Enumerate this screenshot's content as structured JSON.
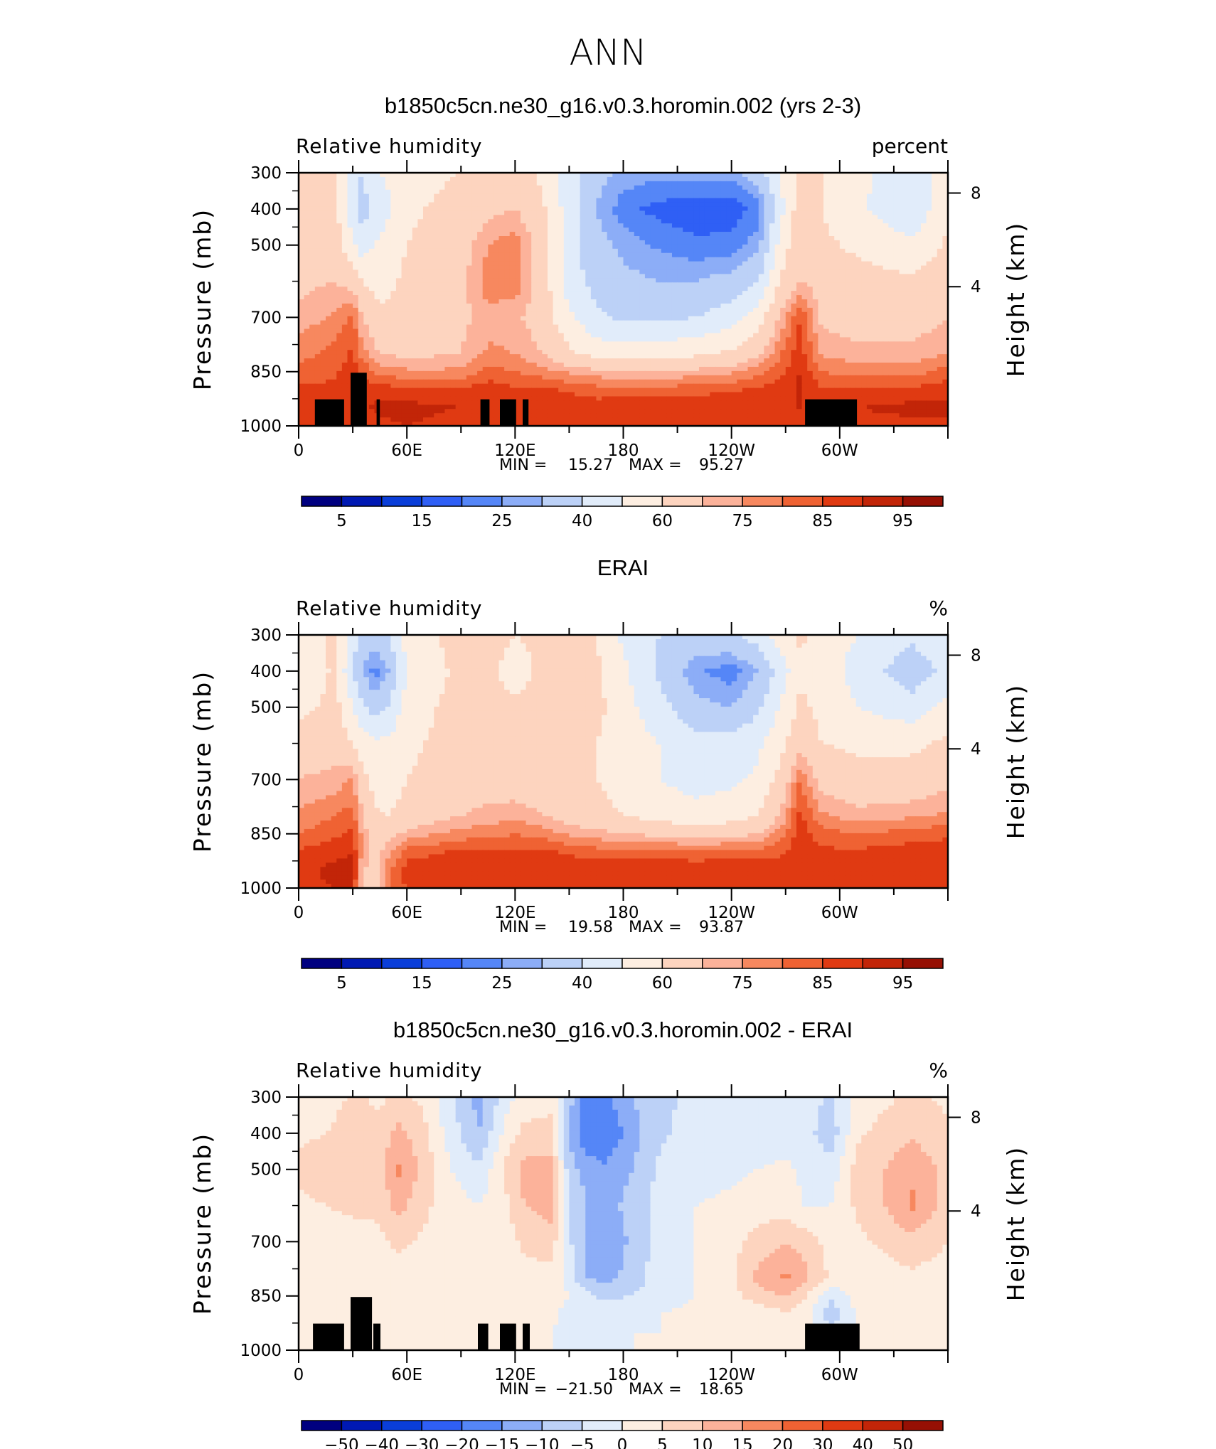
{
  "figure": {
    "title": "ANN"
  },
  "colors": {
    "levels_rh": [
      "#000080",
      "#0019b3",
      "#0a3ed9",
      "#2f5ff5",
      "#5586f7",
      "#8cadf7",
      "#bcd1f7",
      "#e1ecfa",
      "#fdeee1",
      "#fdd4bf",
      "#fcb29a",
      "#f7885f",
      "#ef6233",
      "#e03a12",
      "#c22508",
      "#961004"
    ],
    "levels_diff": [
      "#000080",
      "#0019b3",
      "#0a3ed9",
      "#2f5ff5",
      "#5586f7",
      "#8cadf7",
      "#bcd1f7",
      "#e1ecfa",
      "#fdeee1",
      "#fdd4bf",
      "#fcb29a",
      "#f7885f",
      "#ef6233",
      "#e03a12",
      "#c22508",
      "#961004"
    ],
    "topography": "#000000"
  },
  "chart_data": [
    {
      "type": "heatmap",
      "title": "b1850c5cn.ne30_g16.v0.3.horomin.002 (yrs 2-3)",
      "left_label": "Relative humidity",
      "units": "percent",
      "ylabel": "Pressure (mb)",
      "ylabel_right": "Height (km)",
      "x_ticks": [
        "0",
        "60E",
        "120E",
        "180",
        "120W",
        "60W"
      ],
      "y_ticks": [
        "300",
        "400",
        "500",
        "700",
        "850",
        "1000"
      ],
      "y_ticks_right": [
        "8",
        "4"
      ],
      "ylim": [
        1000,
        300
      ],
      "xlim": [
        0,
        360
      ],
      "stats": {
        "min_label": "MIN =",
        "min": "15.27",
        "max_label": "MAX =",
        "max": "95.27"
      },
      "colorbar_labels": [
        "5",
        "15",
        "25",
        "40",
        "60",
        "75",
        "85",
        "95"
      ],
      "field": {
        "lon": [
          0,
          20,
          30,
          35,
          45,
          60,
          90,
          105,
          120,
          135,
          150,
          165,
          180,
          200,
          220,
          240,
          255,
          268,
          278,
          290,
          310,
          340,
          360
        ],
        "p": [
          300,
          400,
          500,
          600,
          700,
          800,
          850,
          900,
          950,
          1000
        ],
        "rh": [
          [
            60,
            62,
            45,
            40,
            50,
            56,
            60,
            66,
            65,
            58,
            45,
            33,
            28,
            27,
            27,
            27,
            35,
            52,
            62,
            60,
            52,
            44,
            55
          ],
          [
            62,
            64,
            42,
            36,
            44,
            58,
            64,
            68,
            70,
            62,
            45,
            30,
            22,
            18,
            17,
            17,
            22,
            48,
            66,
            60,
            52,
            42,
            58
          ],
          [
            65,
            66,
            52,
            45,
            52,
            60,
            66,
            75,
            78,
            66,
            45,
            33,
            28,
            24,
            21,
            22,
            28,
            55,
            68,
            62,
            58,
            52,
            62
          ],
          [
            68,
            70,
            66,
            60,
            56,
            62,
            68,
            78,
            78,
            66,
            45,
            36,
            32,
            30,
            30,
            33,
            40,
            62,
            70,
            66,
            64,
            62,
            66
          ],
          [
            72,
            76,
            82,
            70,
            62,
            64,
            68,
            73,
            72,
            65,
            52,
            42,
            38,
            38,
            40,
            45,
            56,
            72,
            85,
            68,
            66,
            66,
            70
          ],
          [
            78,
            82,
            86,
            78,
            70,
            68,
            70,
            76,
            75,
            70,
            62,
            56,
            55,
            56,
            58,
            62,
            68,
            80,
            88,
            74,
            72,
            72,
            75
          ],
          [
            82,
            84,
            88,
            84,
            78,
            76,
            76,
            82,
            80,
            77,
            74,
            72,
            70,
            70,
            72,
            74,
            78,
            84,
            90,
            80,
            78,
            78,
            82
          ],
          [
            87,
            86,
            90,
            88,
            88,
            86,
            86,
            88,
            86,
            86,
            84,
            82,
            82,
            82,
            83,
            84,
            86,
            88,
            91,
            86,
            85,
            86,
            88
          ],
          [
            89,
            88,
            90,
            89,
            92,
            92,
            90,
            90,
            90,
            90,
            89,
            88,
            89,
            90,
            90,
            90,
            90,
            90,
            90,
            88,
            90,
            92,
            92
          ],
          [
            86,
            86,
            87,
            86,
            88,
            90,
            87,
            86,
            88,
            88,
            87,
            86,
            86,
            87,
            88,
            88,
            88,
            87,
            86,
            86,
            87,
            88,
            88
          ]
        ]
      }
    },
    {
      "type": "heatmap",
      "title": "ERAI",
      "left_label": "Relative humidity",
      "units": "%",
      "ylabel": "Pressure (mb)",
      "ylabel_right": "Height (km)",
      "x_ticks": [
        "0",
        "60E",
        "120E",
        "180",
        "120W",
        "60W"
      ],
      "y_ticks": [
        "300",
        "400",
        "500",
        "700",
        "850",
        "1000"
      ],
      "y_ticks_right": [
        "8",
        "4"
      ],
      "ylim": [
        1000,
        300
      ],
      "xlim": [
        0,
        360
      ],
      "stats": {
        "min_label": "MIN =",
        "min": "19.58",
        "max_label": "MAX =",
        "max": "93.87"
      },
      "colorbar_labels": [
        "5",
        "15",
        "25",
        "40",
        "60",
        "75",
        "85",
        "95"
      ],
      "field": {
        "lon": [
          0,
          20,
          30,
          35,
          42,
          50,
          60,
          90,
          105,
          120,
          135,
          150,
          165,
          180,
          200,
          220,
          240,
          255,
          268,
          278,
          290,
          310,
          340,
          360
        ],
        "p": [
          300,
          400,
          500,
          600,
          700,
          800,
          850,
          900,
          950,
          1000
        ],
        "rh": [
          [
            55,
            62,
            45,
            38,
            35,
            40,
            55,
            64,
            64,
            60,
            62,
            64,
            60,
            48,
            40,
            36,
            38,
            45,
            56,
            62,
            55,
            50,
            42,
            50
          ],
          [
            50,
            62,
            40,
            30,
            22,
            30,
            50,
            63,
            62,
            56,
            62,
            63,
            62,
            52,
            38,
            26,
            22,
            30,
            45,
            58,
            56,
            46,
            34,
            42
          ],
          [
            56,
            64,
            50,
            42,
            36,
            40,
            55,
            64,
            64,
            62,
            63,
            64,
            63,
            54,
            44,
            32,
            30,
            38,
            52,
            62,
            58,
            50,
            44,
            54
          ],
          [
            66,
            66,
            60,
            55,
            52,
            52,
            58,
            64,
            64,
            62,
            62,
            62,
            60,
            55,
            50,
            44,
            44,
            48,
            58,
            66,
            60,
            58,
            58,
            62
          ],
          [
            70,
            72,
            76,
            64,
            56,
            54,
            60,
            65,
            66,
            64,
            64,
            63,
            60,
            55,
            50,
            46,
            48,
            52,
            64,
            80,
            66,
            64,
            64,
            68
          ],
          [
            76,
            80,
            82,
            72,
            62,
            60,
            64,
            70,
            72,
            74,
            70,
            66,
            64,
            60,
            56,
            54,
            56,
            60,
            72,
            86,
            76,
            72,
            74,
            76
          ],
          [
            80,
            84,
            86,
            74,
            64,
            66,
            72,
            77,
            78,
            80,
            78,
            74,
            72,
            70,
            68,
            66,
            67,
            70,
            78,
            88,
            82,
            80,
            82,
            84
          ],
          [
            86,
            88,
            90,
            74,
            66,
            74,
            82,
            86,
            86,
            86,
            86,
            84,
            82,
            82,
            82,
            81,
            82,
            82,
            84,
            88,
            86,
            86,
            88,
            88
          ],
          [
            88,
            92,
            92,
            72,
            66,
            78,
            88,
            90,
            90,
            90,
            90,
            90,
            89,
            89,
            89,
            89,
            89,
            89,
            88,
            90,
            90,
            89,
            90,
            90
          ],
          [
            88,
            90,
            90,
            70,
            66,
            78,
            86,
            88,
            88,
            88,
            88,
            88,
            88,
            88,
            88,
            88,
            88,
            88,
            86,
            88,
            88,
            86,
            88,
            88
          ]
        ]
      }
    },
    {
      "type": "heatmap",
      "title": "b1850c5cn.ne30_g16.v0.3.horomin.002 - ERAI",
      "left_label": "Relative humidity",
      "units": "%",
      "ylabel": "Pressure (mb)",
      "ylabel_right": "Height (km)",
      "x_ticks": [
        "0",
        "60E",
        "120E",
        "180",
        "120W",
        "60W"
      ],
      "y_ticks": [
        "300",
        "400",
        "500",
        "700",
        "850",
        "1000"
      ],
      "y_ticks_right": [
        "8",
        "4"
      ],
      "ylim": [
        1000,
        300
      ],
      "xlim": [
        0,
        360
      ],
      "stats": {
        "min_label": "MIN =",
        "min": "−21.50",
        "max_label": "MAX =",
        "max": "18.65"
      },
      "colorbar_labels": [
        "−50",
        "−40",
        "−30",
        "−20",
        "−15",
        "−10",
        "−5",
        "0",
        "5",
        "10",
        "15",
        "20",
        "30",
        "40",
        "50"
      ],
      "field": {
        "lon": [
          0,
          15,
          30,
          45,
          55,
          70,
          85,
          100,
          115,
          125,
          140,
          150,
          160,
          170,
          185,
          200,
          220,
          240,
          255,
          270,
          280,
          295,
          310,
          325,
          340,
          360
        ],
        "p": [
          300,
          400,
          500,
          600,
          700,
          800,
          850,
          900,
          950,
          1000
        ],
        "dv": [
          [
            3,
            2,
            6,
            4,
            6,
            4,
            -4,
            -12,
            -2,
            3,
            4,
            -8,
            -18,
            -16,
            -10,
            -6,
            -4,
            -3,
            -2,
            -1,
            -2,
            -6,
            2,
            4,
            6,
            4
          ],
          [
            4,
            5,
            8,
            6,
            12,
            6,
            -3,
            -10,
            2,
            6,
            6,
            -10,
            -20,
            -20,
            -12,
            -6,
            -3,
            -2,
            -3,
            -2,
            -3,
            -8,
            4,
            7,
            9,
            6
          ],
          [
            6,
            8,
            10,
            8,
            16,
            8,
            0,
            -4,
            6,
            12,
            12,
            -8,
            -12,
            -14,
            -10,
            -4,
            -2,
            -1,
            0,
            1,
            -1,
            -3,
            7,
            10,
            14,
            8
          ],
          [
            4,
            5,
            6,
            6,
            12,
            6,
            2,
            0,
            4,
            10,
            12,
            -6,
            -10,
            -12,
            -8,
            -3,
            0,
            1,
            3,
            2,
            0,
            0,
            6,
            10,
            16,
            8
          ],
          [
            3,
            3,
            3,
            4,
            6,
            4,
            2,
            2,
            3,
            6,
            8,
            -4,
            -12,
            -14,
            -9,
            -3,
            0,
            3,
            7,
            10,
            8,
            3,
            4,
            6,
            8,
            5
          ],
          [
            2,
            3,
            3,
            2,
            3,
            2,
            1,
            1,
            2,
            3,
            3,
            -2,
            -10,
            -12,
            -8,
            -2,
            0,
            4,
            12,
            16,
            12,
            4,
            3,
            3,
            4,
            3
          ],
          [
            2,
            4,
            3,
            2,
            3,
            1,
            1,
            0,
            1,
            2,
            2,
            0,
            -4,
            -6,
            -5,
            -2,
            0,
            3,
            8,
            10,
            6,
            -4,
            2,
            2,
            3,
            2
          ],
          [
            3,
            4,
            3,
            2,
            2,
            1,
            0,
            0,
            1,
            2,
            1,
            -2,
            -3,
            -3,
            -2,
            0,
            1,
            1,
            2,
            4,
            3,
            -8,
            1,
            2,
            2,
            2
          ],
          [
            2,
            3,
            3,
            2,
            2,
            1,
            0,
            0,
            1,
            1,
            0,
            -1,
            -2,
            -1,
            0,
            0,
            0,
            1,
            1,
            2,
            1,
            -4,
            1,
            1,
            2,
            1
          ],
          [
            1,
            2,
            2,
            1,
            1,
            1,
            0,
            0,
            1,
            1,
            0,
            0,
            -1,
            0,
            0,
            0,
            0,
            0,
            1,
            1,
            1,
            -2,
            1,
            1,
            1,
            1
          ]
        ]
      }
    }
  ]
}
